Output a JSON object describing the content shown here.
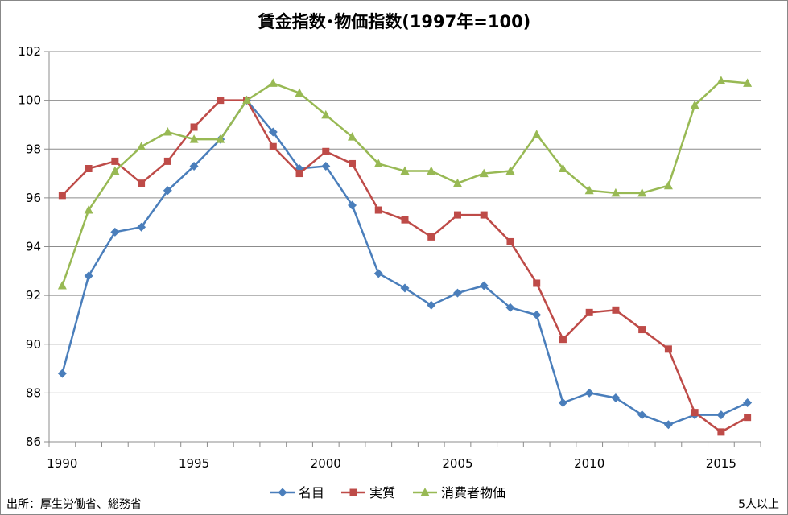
{
  "chart_data": {
    "type": "line",
    "title": "賃金指数･物価指数(1997年=100)",
    "xlabel": "",
    "ylabel": "",
    "x": [
      1990,
      1991,
      1992,
      1993,
      1994,
      1995,
      1996,
      1997,
      1998,
      1999,
      2000,
      2001,
      2002,
      2003,
      2004,
      2005,
      2006,
      2007,
      2008,
      2009,
      2010,
      2011,
      2012,
      2013,
      2014,
      2015,
      2016
    ],
    "xlim": [
      1989.5,
      2016.5
    ],
    "ylim": [
      86,
      102
    ],
    "x_ticks": [
      1990,
      1995,
      2000,
      2005,
      2010,
      2015
    ],
    "y_ticks": [
      86,
      88,
      90,
      92,
      94,
      96,
      98,
      100,
      102
    ],
    "grid": true,
    "legend_position": "bottom",
    "series": [
      {
        "name": "名目",
        "color": "#4a7ebb",
        "marker": "diamond",
        "values": [
          88.8,
          92.8,
          94.6,
          94.8,
          96.3,
          97.3,
          98.4,
          100.0,
          98.7,
          97.2,
          97.3,
          95.7,
          92.9,
          92.3,
          91.6,
          92.1,
          92.4,
          91.5,
          91.2,
          87.6,
          88.0,
          87.8,
          87.1,
          86.7,
          87.1,
          87.1,
          87.6
        ]
      },
      {
        "name": "実質",
        "color": "#be4b48",
        "marker": "square",
        "values": [
          96.1,
          97.2,
          97.5,
          96.6,
          97.5,
          98.9,
          100.0,
          100.0,
          98.1,
          97.0,
          97.9,
          97.4,
          95.5,
          95.1,
          94.4,
          95.3,
          95.3,
          94.2,
          92.5,
          90.2,
          91.3,
          91.4,
          90.6,
          89.8,
          87.2,
          86.4,
          87.0
        ]
      },
      {
        "name": "消費者物価",
        "color": "#98b954",
        "marker": "triangle",
        "values": [
          92.4,
          95.5,
          97.1,
          98.1,
          98.7,
          98.4,
          98.4,
          100.0,
          100.7,
          100.3,
          99.4,
          98.5,
          97.4,
          97.1,
          97.1,
          96.6,
          97.0,
          97.1,
          98.6,
          97.2,
          96.3,
          96.2,
          96.2,
          96.5,
          99.8,
          100.8,
          100.7
        ]
      }
    ]
  },
  "notes": {
    "source": "出所：厚生労働省、総務省",
    "scope": "5人以上"
  }
}
